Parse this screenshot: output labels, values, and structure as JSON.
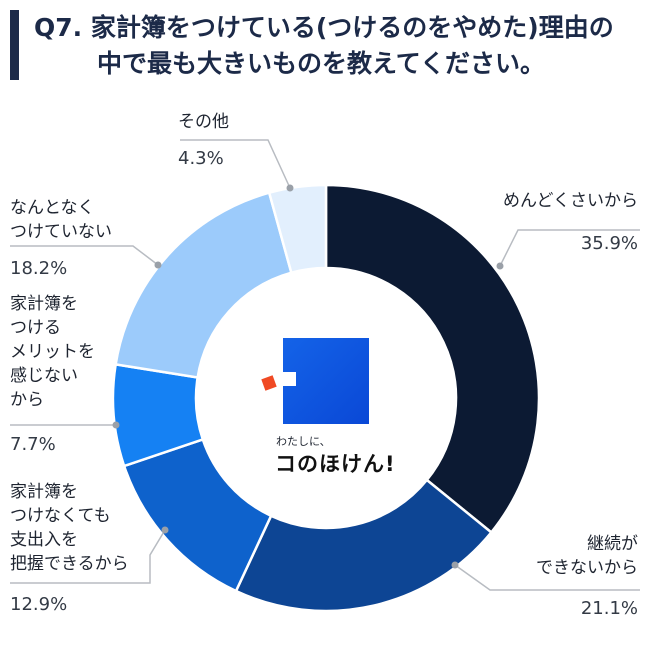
{
  "title": {
    "line1": "Q7. 家計簿をつけている(つけるのをやめた)理由の",
    "line2": "中で最も大きいものを教えてください。"
  },
  "logo": {
    "small_text": "わたしに、",
    "main_text": "コのほけん!"
  },
  "chart_data": {
    "type": "pie",
    "donut": true,
    "legend": "none",
    "slices": [
      {
        "label": "めんどくさいから",
        "value": 35.9,
        "display": "35.9%",
        "color": "#0c1a33"
      },
      {
        "label": "継続ができないから",
        "value": 21.1,
        "display": "21.1%",
        "color": "#0d4594"
      },
      {
        "label": "家計簿をつけなくても支出入を把握できるから",
        "value": 12.9,
        "display": "12.9%",
        "color": "#0e62cc"
      },
      {
        "label": "家計簿をつけるメリットを感じないから",
        "value": 7.7,
        "display": "7.7%",
        "color": "#1581f3"
      },
      {
        "label": "なんとなくつけていない",
        "value": 18.2,
        "display": "18.2%",
        "color": "#9ccbfb"
      },
      {
        "label": "その他",
        "value": 4.3,
        "display": "4.3%",
        "color": "#e2effd"
      }
    ]
  },
  "labels": [
    {
      "lines": [
        "めんどくさいから"
      ],
      "pct": "35.9%"
    },
    {
      "lines": [
        "継続が",
        "できないから"
      ],
      "pct": "21.1%"
    },
    {
      "lines": [
        "家計簿を",
        "つけなくても",
        "支出入を",
        "把握できるから"
      ],
      "pct": "12.9%"
    },
    {
      "lines": [
        "家計簿を",
        "つける",
        "メリットを",
        "感じない",
        "から"
      ],
      "pct": "7.7%"
    },
    {
      "lines": [
        "なんとなく",
        "つけていない"
      ],
      "pct": "18.2%"
    },
    {
      "lines": [
        "その他"
      ],
      "pct": "4.3%"
    }
  ]
}
